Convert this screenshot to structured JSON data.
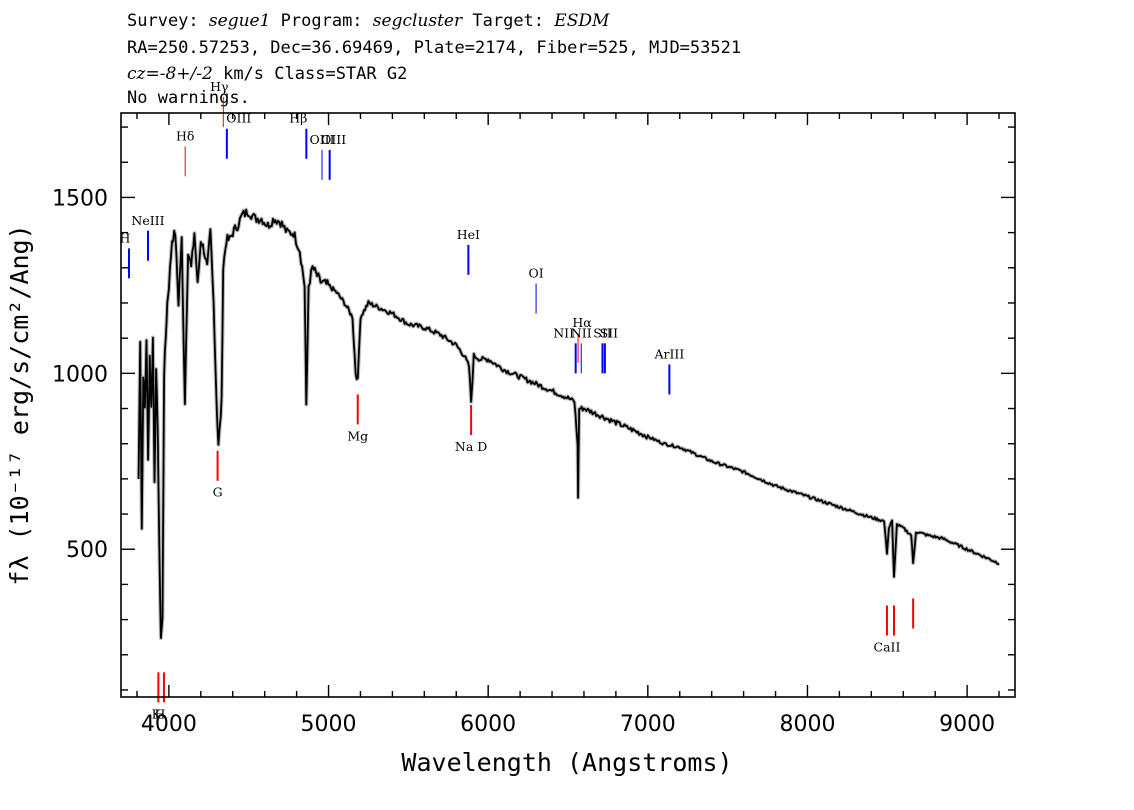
{
  "header": {
    "line1": {
      "survey_label": "Survey:",
      "survey": "segue1",
      "program_label": "Program:",
      "program": "segcluster",
      "target_label": "Target:",
      "target": "ESDM"
    },
    "line2": "RA=250.57253, Dec=36.69469, Plate=2174, Fiber=525, MJD=53521",
    "line3": {
      "cz_label": "cz=",
      "cz_value": "-8+/-2",
      "cz_unit": "km/s",
      "class": "Class=STAR G2"
    },
    "line4": "No warnings."
  },
  "chart_data": {
    "type": "line",
    "xlabel": "Wavelength (Angstroms)",
    "ylabel": "fλ (10⁻¹⁷ erg/s/cm²/Ang)",
    "xlim": [
      3700,
      9300
    ],
    "ylim": [
      80,
      1740
    ],
    "xticks": [
      4000,
      5000,
      6000,
      7000,
      8000,
      9000
    ],
    "yticks": [
      500,
      1000,
      1500
    ],
    "grid": false,
    "series": [
      {
        "x": [
          3810,
          3820,
          3830,
          3840,
          3850,
          3860,
          3870,
          3880,
          3890,
          3900,
          3910,
          3920,
          3930,
          3940,
          3950,
          3960,
          3970,
          3980,
          3990,
          4000,
          4020,
          4040,
          4060,
          4080,
          4100,
          4120,
          4140,
          4160,
          4180,
          4200,
          4220,
          4240,
          4260,
          4280,
          4300,
          4310,
          4320,
          4330,
          4340,
          4360,
          4380,
          4400,
          4430,
          4460,
          4500,
          4540,
          4580,
          4620,
          4660,
          4700,
          4740,
          4780,
          4820,
          4850,
          4861,
          4875,
          4900,
          4950,
          5000,
          5050,
          5100,
          5150,
          5170,
          5183,
          5200,
          5250,
          5300,
          5400,
          5500,
          5600,
          5700,
          5800,
          5850,
          5880,
          5893,
          5910,
          5950,
          6000,
          6100,
          6200,
          6300,
          6400,
          6500,
          6540,
          6560,
          6563,
          6570,
          6600,
          6700,
          6800,
          6900,
          7000,
          7100,
          7200,
          7400,
          7600,
          7800,
          8000,
          8200,
          8400,
          8480,
          8498,
          8510,
          8530,
          8542,
          8560,
          8600,
          8650,
          8662,
          8680,
          8750,
          8850,
          8950,
          9050,
          9150,
          9200
        ],
        "y": [
          700,
          1100,
          560,
          1000,
          900,
          1100,
          750,
          1050,
          900,
          1100,
          700,
          1000,
          850,
          500,
          250,
          300,
          1000,
          1100,
          1200,
          1250,
          1380,
          1400,
          1200,
          1380,
          920,
          1350,
          1300,
          1400,
          1250,
          1380,
          1350,
          1300,
          1400,
          1200,
          900,
          800,
          850,
          920,
          1300,
          1380,
          1380,
          1400,
          1420,
          1450,
          1460,
          1440,
          1440,
          1420,
          1440,
          1430,
          1400,
          1400,
          1350,
          1250,
          900,
          1250,
          1300,
          1260,
          1250,
          1230,
          1200,
          1160,
          1000,
          980,
          1160,
          1200,
          1190,
          1170,
          1140,
          1130,
          1110,
          1080,
          1050,
          1020,
          920,
          1050,
          1040,
          1040,
          1010,
          990,
          970,
          950,
          930,
          920,
          800,
          650,
          900,
          900,
          880,
          860,
          840,
          820,
          800,
          790,
          750,
          720,
          680,
          650,
          620,
          590,
          580,
          490,
          560,
          580,
          420,
          570,
          560,
          540,
          460,
          550,
          540,
          530,
          510,
          490,
          470,
          460
        ]
      }
    ],
    "lines": [
      {
        "label": "H",
        "wave": 3750,
        "color": "#0000ff",
        "side": "top",
        "y": 1270,
        "ho": -4,
        "ch": -30,
        "lw": 2
      },
      {
        "label": "NeIII",
        "wave": 3869,
        "color": "#0000ff",
        "side": "top",
        "y": 1320,
        "ho": 0,
        "ch": -30,
        "lw": 2
      },
      {
        "label": "Hδ",
        "wave": 4102,
        "color": "#ff0000",
        "side": "top",
        "y": 1560,
        "ho": 0,
        "ch": -30,
        "lw": 1
      },
      {
        "label": "Hγ",
        "wave": 4341,
        "color": "#ff0000",
        "side": "top",
        "y": 1700,
        "ho": -4,
        "ch": -30,
        "lw": 1
      },
      {
        "label": "OIII",
        "wave": 4363,
        "color": "#0000ff",
        "side": "top",
        "y": 1610,
        "ho": 12,
        "ch": -30,
        "lw": 2
      },
      {
        "label": "Hβ",
        "wave": 4861,
        "color": "#0000ff",
        "side": "top",
        "y": 1610,
        "ho": -8,
        "ch": -30,
        "lw": 2
      },
      {
        "label": "OIII",
        "wave": 4959,
        "color": "#0000ff",
        "side": "top",
        "y": 1550,
        "ho": 0,
        "ch": -30,
        "lw": 1
      },
      {
        "label": "OIII",
        "wave": 5007,
        "color": "#0000ff",
        "side": "top",
        "y": 1550,
        "ho": 4,
        "ch": -30,
        "lw": 2
      },
      {
        "label": "HeI",
        "wave": 5876,
        "color": "#0000ff",
        "side": "top",
        "y": 1280,
        "ho": 0,
        "ch": -30,
        "lw": 2
      },
      {
        "label": "OI",
        "wave": 6300,
        "color": "#0000ff",
        "side": "top",
        "y": 1170,
        "ho": 0,
        "ch": -30,
        "lw": 1
      },
      {
        "label": "Hα",
        "wave": 6563,
        "color": "#ff0000",
        "side": "top",
        "y": 1030,
        "ho": 4,
        "ch": -30,
        "lw": 1
      },
      {
        "label": "NII",
        "wave": 6548,
        "color": "#0000ff",
        "side": "top",
        "y": 1000,
        "ho": -12,
        "ch": -30,
        "lw": 2
      },
      {
        "label": "NII",
        "wave": 6583,
        "color": "#0000ff",
        "side": "top",
        "y": 1000,
        "ho": 0,
        "ch": -30,
        "lw": 1
      },
      {
        "label": "SII",
        "wave": 6716,
        "color": "#0000ff",
        "side": "top",
        "y": 1000,
        "ho": 0,
        "ch": -30,
        "lw": 2
      },
      {
        "label": "SII",
        "wave": 6731,
        "color": "#0000ff",
        "side": "top",
        "y": 1000,
        "ho": 4,
        "ch": -30,
        "lw": 2
      },
      {
        "label": "ArIII",
        "wave": 7135,
        "color": "#0000ff",
        "side": "top",
        "y": 940,
        "ho": 0,
        "ch": -30,
        "lw": 2
      },
      {
        "label": "G",
        "wave": 4305,
        "color": "#ff0000",
        "side": "bottom",
        "y": 780,
        "ho": 0,
        "ch": 46,
        "lw": 2
      },
      {
        "label": "Mg",
        "wave": 5183,
        "color": "#ff0000",
        "side": "bottom",
        "y": 940,
        "ho": 0,
        "ch": 46,
        "lw": 2
      },
      {
        "label": "Na D",
        "wave": 5893,
        "color": "#ff0000",
        "side": "bottom",
        "y": 910,
        "ho": 0,
        "ch": 46,
        "lw": 2
      },
      {
        "label": "K",
        "wave": 3934,
        "color": "#ff0000",
        "side": "bottom",
        "y": 150,
        "ho": -2,
        "ch": 46,
        "lw": 2
      },
      {
        "label": "H",
        "wave": 3969,
        "color": "#ff0000",
        "side": "bottom",
        "y": 150,
        "ho": -4,
        "ch": 46,
        "lw": 2
      },
      {
        "label": "CaII",
        "wave": 8498,
        "color": "#ff0000",
        "side": "bottom",
        "y": 340,
        "ho": 0,
        "ch": 46,
        "lw": 2
      },
      {
        "label": "",
        "wave": 8542,
        "color": "#ff0000",
        "side": "bottom",
        "y": 340,
        "ho": 0,
        "ch": 46,
        "lw": 2
      },
      {
        "label": "",
        "wave": 8662,
        "color": "#ff0000",
        "side": "bottom",
        "y": 360,
        "ho": 0,
        "ch": 46,
        "lw": 2
      }
    ]
  }
}
